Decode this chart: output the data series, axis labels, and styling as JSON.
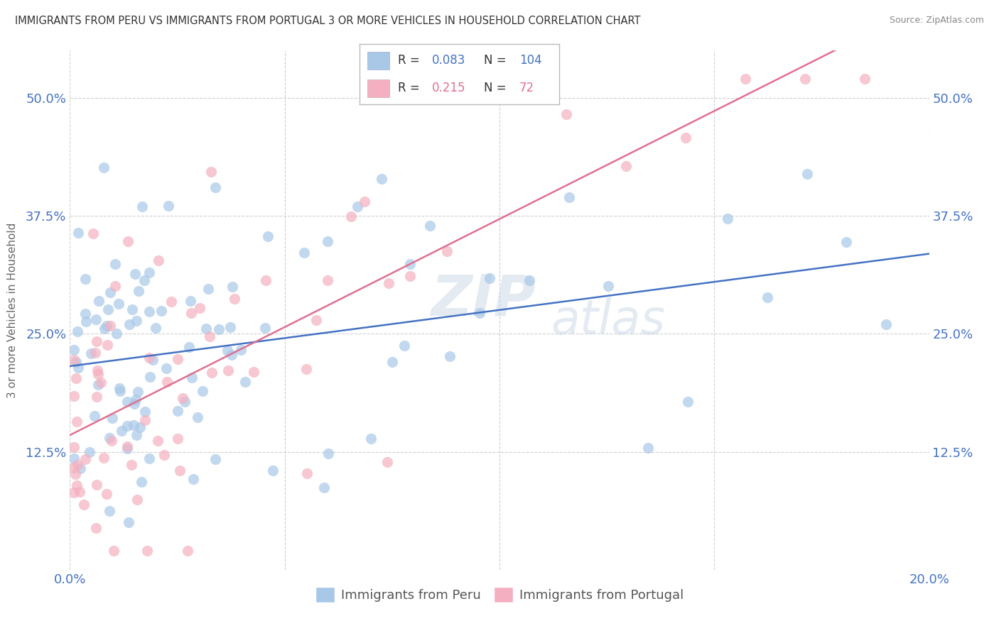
{
  "title": "IMMIGRANTS FROM PERU VS IMMIGRANTS FROM PORTUGAL 3 OR MORE VEHICLES IN HOUSEHOLD CORRELATION CHART",
  "source": "Source: ZipAtlas.com",
  "ylabel": "3 or more Vehicles in Household",
  "xlabel_peru": "Immigrants from Peru",
  "xlabel_portugal": "Immigrants from Portugal",
  "xlim": [
    0.0,
    0.2
  ],
  "ylim": [
    0.0,
    0.55
  ],
  "yticks": [
    0.0,
    0.125,
    0.25,
    0.375,
    0.5
  ],
  "ytick_labels": [
    "",
    "12.5%",
    "25.0%",
    "37.5%",
    "50.0%"
  ],
  "xticks": [
    0.0,
    0.05,
    0.1,
    0.15,
    0.2
  ],
  "xtick_labels": [
    "0.0%",
    "",
    "",
    "",
    "20.0%"
  ],
  "peru_R": 0.083,
  "peru_N": 104,
  "portugal_R": 0.215,
  "portugal_N": 72,
  "peru_color": "#a8c8e8",
  "portugal_color": "#f4b0c0",
  "peru_line_color": "#4472c4",
  "portugal_line_color": "#e07090",
  "watermark_line1": "ZIP",
  "watermark_line2": "atlas",
  "background_color": "#ffffff",
  "grid_color": "#d0d0d0",
  "title_color": "#333333",
  "source_color": "#888888",
  "tick_color": "#4472c4",
  "ylabel_color": "#666666",
  "legend_label_color": "#555555"
}
